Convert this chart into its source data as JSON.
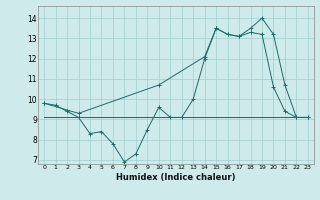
{
  "xlabel": "Humidex (Indice chaleur)",
  "background_color": "#ceeaea",
  "grid_color": "#9fcfcf",
  "line_color": "#1a6b6b",
  "xlim": [
    -0.5,
    23.5
  ],
  "ylim": [
    6.8,
    14.6
  ],
  "yticks": [
    7,
    8,
    9,
    10,
    11,
    12,
    13,
    14
  ],
  "xticks": [
    0,
    1,
    2,
    3,
    4,
    5,
    6,
    7,
    8,
    9,
    10,
    11,
    12,
    13,
    14,
    15,
    16,
    17,
    18,
    19,
    20,
    21,
    22,
    23
  ],
  "series1_x": [
    0,
    1,
    2,
    3,
    4,
    5,
    6,
    7,
    8,
    9,
    10,
    11,
    12,
    13,
    14,
    15,
    16,
    17,
    18,
    19,
    20,
    21,
    22,
    23
  ],
  "series1_y": [
    9.8,
    9.7,
    9.4,
    9.1,
    8.3,
    8.4,
    7.8,
    6.9,
    7.3,
    8.5,
    9.6,
    9.1,
    9.1,
    10.0,
    12.0,
    13.5,
    13.2,
    13.1,
    13.3,
    13.2,
    10.6,
    9.4,
    9.1,
    9.1
  ],
  "series2_x": [
    0,
    3,
    10,
    14,
    15,
    16,
    17,
    18,
    19,
    20,
    21,
    22,
    23
  ],
  "series2_y": [
    9.8,
    9.3,
    10.7,
    12.1,
    13.5,
    13.2,
    13.1,
    13.5,
    14.0,
    13.2,
    10.7,
    9.1,
    9.1
  ],
  "series3_x": [
    0,
    23
  ],
  "series3_y": [
    9.1,
    9.1
  ]
}
